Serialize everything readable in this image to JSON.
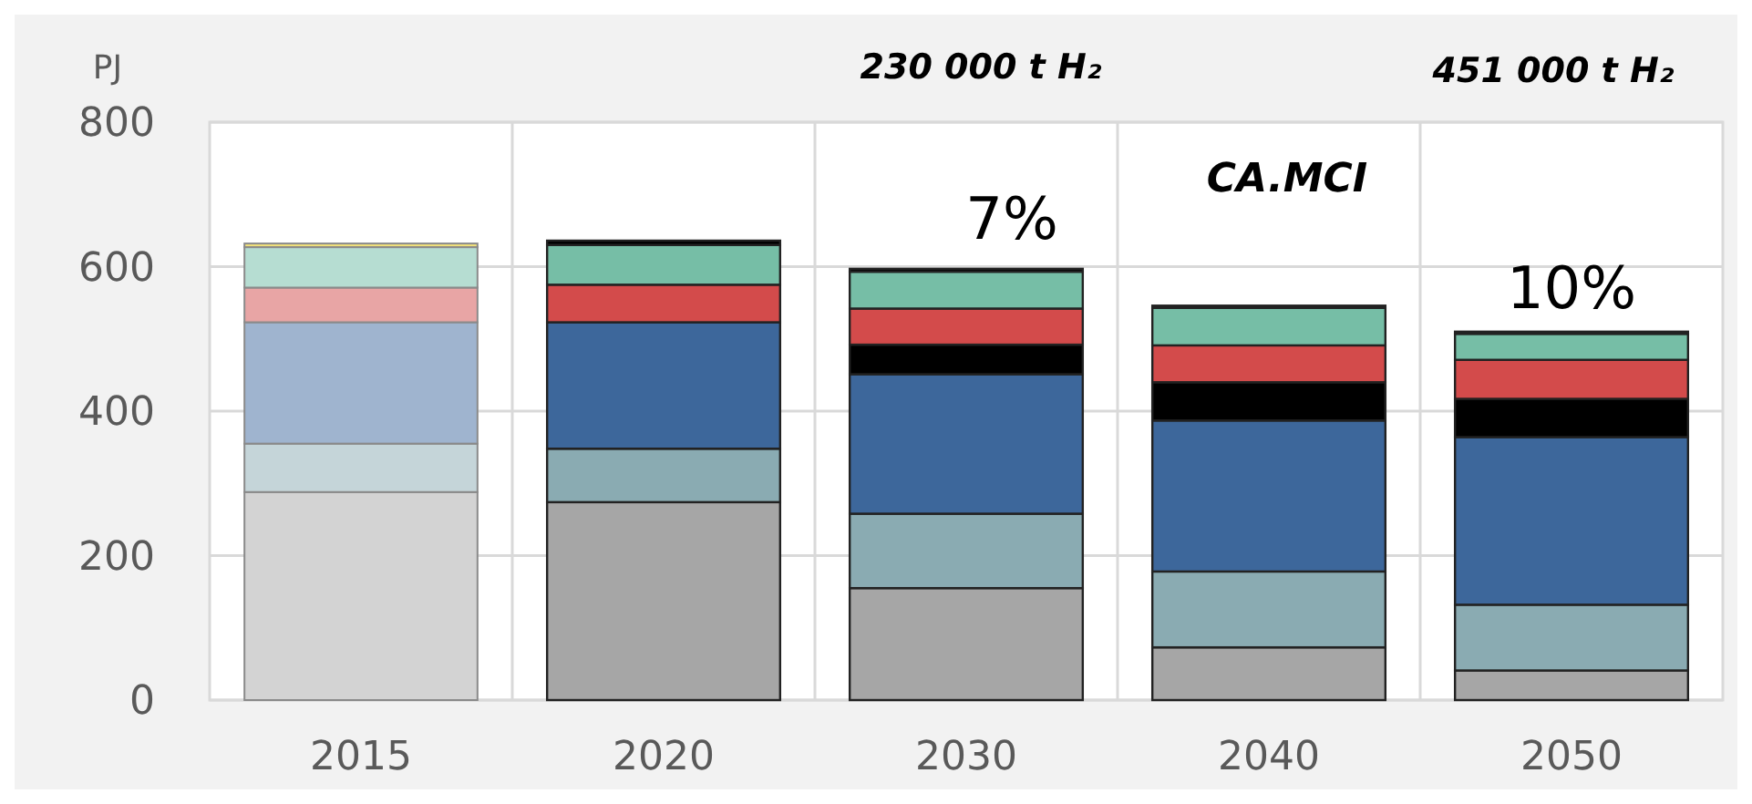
{
  "chart_data": {
    "type": "bar",
    "stacked": true,
    "ylabel": "PJ",
    "categories": [
      "2015",
      "2020",
      "2030",
      "2040",
      "2050"
    ],
    "ylim": [
      0,
      800
    ],
    "yticks": [
      0,
      200,
      400,
      600,
      800
    ],
    "grid": true,
    "annotations": [
      "230 000 t H₂",
      "451 000 t H₂",
      "7%",
      "CA.MCI",
      "10%"
    ],
    "series": [
      {
        "colors": [
          "#d3d3d3",
          "#a6a6a6",
          "#a6a6a6",
          "#a6a6a6",
          "#a6a6a6"
        ],
        "values": [
          288,
          274,
          155,
          73,
          41
        ]
      },
      {
        "colors": [
          "#c5d5d9",
          "#8aabb2",
          "#8aabb2",
          "#8aabb2",
          "#8aabb2"
        ],
        "values": [
          67,
          74,
          103,
          105,
          91
        ]
      },
      {
        "colors": [
          "#9fb4cf",
          "#3d679b",
          "#3d679b",
          "#3d679b",
          "#3d679b"
        ],
        "values": [
          168,
          175,
          193,
          209,
          232
        ]
      },
      {
        "colors": [
          null,
          null,
          "#000000",
          "#000000",
          "#000000"
        ],
        "values": [
          null,
          null,
          41,
          53,
          53
        ]
      },
      {
        "colors": [
          "#e8a5a5",
          "#d34b4b",
          "#d34b4b",
          "#d34b4b",
          "#d34b4b"
        ],
        "values": [
          48,
          52,
          50,
          51,
          54
        ]
      },
      {
        "colors": [
          "#b6ddd2",
          "#76bea6",
          "#76bea6",
          "#76bea6",
          "#76bea6"
        ],
        "values": [
          56,
          55,
          51,
          52,
          36
        ]
      },
      {
        "colors": [
          "#f3e27a",
          "#000000",
          "#000000",
          "#000000",
          "#000000"
        ],
        "values": [
          5,
          6,
          4,
          3,
          3
        ]
      }
    ]
  }
}
